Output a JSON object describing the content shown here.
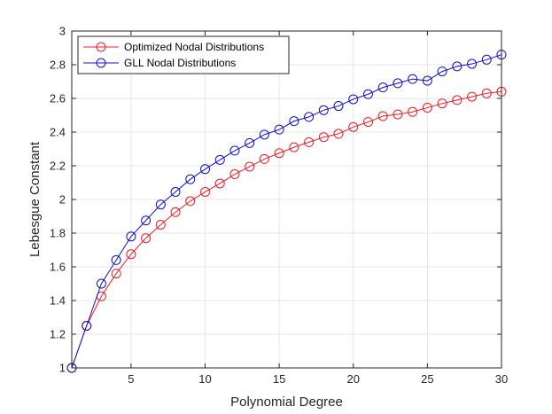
{
  "chart_data": {
    "type": "line",
    "title": "",
    "xlabel": "Polynomial Degree",
    "ylabel": "Lebesgue Constant",
    "xlim": [
      1,
      30
    ],
    "ylim": [
      1,
      3
    ],
    "xticks": [
      5,
      10,
      15,
      20,
      25,
      30
    ],
    "yticks": [
      1,
      1.2,
      1.4,
      1.6,
      1.8,
      2,
      2.2,
      2.4,
      2.6,
      2.8,
      3
    ],
    "ytick_labels": [
      "1",
      "1.2",
      "1.4",
      "1.6",
      "1.8",
      "2",
      "2.2",
      "2.4",
      "2.6",
      "2.8",
      "3"
    ],
    "grid": true,
    "legend_position": "top-left",
    "x": [
      1,
      2,
      3,
      4,
      5,
      6,
      7,
      8,
      9,
      10,
      11,
      12,
      13,
      14,
      15,
      16,
      17,
      18,
      19,
      20,
      21,
      22,
      23,
      24,
      25,
      26,
      27,
      28,
      29,
      30
    ],
    "series": [
      {
        "name": "Optimized Nodal Distributions",
        "color": "#ee1c24",
        "marker": "circle",
        "values": [
          1.0,
          1.25,
          1.425,
          1.56,
          1.675,
          1.77,
          1.85,
          1.925,
          1.99,
          2.045,
          2.095,
          2.15,
          2.195,
          2.24,
          2.275,
          2.31,
          2.34,
          2.37,
          2.39,
          2.43,
          2.46,
          2.495,
          2.505,
          2.52,
          2.545,
          2.57,
          2.59,
          2.61,
          2.63,
          2.64
        ]
      },
      {
        "name": "GLL Nodal Distributions",
        "color": "#1010cc",
        "marker": "circle",
        "values": [
          1.0,
          1.25,
          1.5,
          1.64,
          1.78,
          1.875,
          1.97,
          2.045,
          2.12,
          2.18,
          2.235,
          2.29,
          2.335,
          2.385,
          2.415,
          2.465,
          2.49,
          2.53,
          2.555,
          2.595,
          2.625,
          2.665,
          2.69,
          2.715,
          2.705,
          2.76,
          2.79,
          2.805,
          2.83,
          2.86
        ]
      }
    ]
  }
}
